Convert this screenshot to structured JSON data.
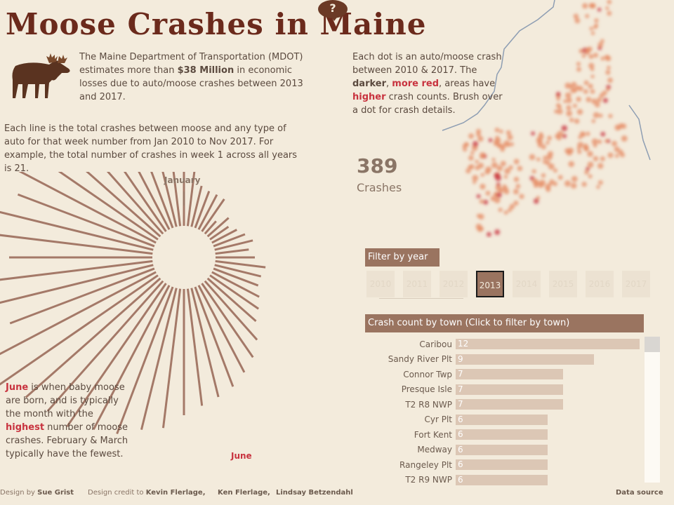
{
  "header": {
    "title": "Moose Crashes in Maine",
    "help_label": "?"
  },
  "intro": {
    "part1": "The Maine Department of Transportation (MDOT) estimates more than ",
    "amount": "$38 Million",
    "part2": " in economic losses due to auto/moose crashes between 2013 and 2017."
  },
  "line_description": "Each line is the total crashes between moose and any type of auto for that week number from Jan 2010 to Nov 2017. For example, the total number of crashes in week 1 across all years is 21.",
  "map_description": {
    "p1": "Each dot is an auto/moose crash between 2010 & 2017. The ",
    "darker": "darker",
    "p2": ", ",
    "more_red": "more red",
    "p3": ", areas have ",
    "higher": "higher",
    "p4": " crash counts. Brush over a dot for crash details."
  },
  "crash_total": {
    "value": "389",
    "label": "Crashes"
  },
  "month_labels": {
    "january": "January",
    "june": "June"
  },
  "june_note": {
    "june": "June",
    "p1": " is when baby moose are born, and is typically the month with the ",
    "highest": "highest",
    "p2": " number of moose crashes. February & March typically have the fewest."
  },
  "year_filter": {
    "title": "Filter by year",
    "years": [
      "2010",
      "2011",
      "2012",
      "2013",
      "2014",
      "2015",
      "2016",
      "2017"
    ],
    "selected": "2013"
  },
  "town_chart": {
    "title": "Crash count by town  (Click to filter by town)"
  },
  "chart_data": [
    {
      "type": "bar",
      "title": "Crash count by town  (Click to filter by town)",
      "categories": [
        "Caribou",
        "Sandy River Plt",
        "Connor Twp",
        "Presque Isle",
        "T2 R8 NWP",
        "Cyr Plt",
        "Fort Kent",
        "Medway",
        "Rangeley Plt",
        "T2 R9 NWP"
      ],
      "values": [
        12,
        9,
        7,
        7,
        7,
        6,
        6,
        6,
        6,
        6
      ],
      "xlim": [
        0,
        12
      ]
    },
    {
      "type": "radial-bar",
      "xlabel": "",
      "ylabel": "",
      "categories": [
        "1",
        "2",
        "3",
        "4",
        "5",
        "6",
        "7",
        "8",
        "9",
        "10",
        "11",
        "12",
        "13",
        "14",
        "15",
        "16",
        "17",
        "18",
        "19",
        "20",
        "21",
        "22",
        "23",
        "24",
        "25",
        "26",
        "27",
        "28",
        "29",
        "30",
        "31",
        "32",
        "33",
        "34",
        "35",
        "36",
        "37",
        "38",
        "39",
        "40",
        "41",
        "42",
        "43",
        "44",
        "45",
        "46",
        "47",
        "48",
        "49",
        "50",
        "51",
        "52"
      ],
      "values": [
        21,
        20,
        15,
        14,
        14,
        14,
        6,
        10,
        8,
        10,
        12,
        14,
        12,
        14,
        18,
        17,
        17,
        19,
        21,
        23,
        28,
        32,
        35,
        38,
        40,
        42,
        45,
        50,
        52,
        56,
        58,
        62,
        62,
        64,
        70,
        70,
        55,
        57,
        65,
        51,
        57,
        60,
        52,
        56,
        55,
        54,
        48,
        54,
        43,
        41,
        36,
        31
      ]
    }
  ],
  "footer": {
    "design_prefix": "Design by ",
    "designer": "Sue Grist",
    "credit_prefix": "Design credit to ",
    "credit1": "Kevin Flerlage,",
    "credit2": "Ken Flerlage,",
    "credit3": "Lindsay Betzendahl",
    "source": "Data source"
  },
  "colors": {
    "title": "#6b2a1c",
    "accent_red": "#c8333f",
    "radial_line": "#a47968",
    "bar": "#dcc7b5",
    "header_bg": "#9a7460",
    "background": "#f3ebdc",
    "map_dot": "#e58b63"
  },
  "icons": {
    "moose": "moose-illustration",
    "map": "maine-crash-map"
  }
}
